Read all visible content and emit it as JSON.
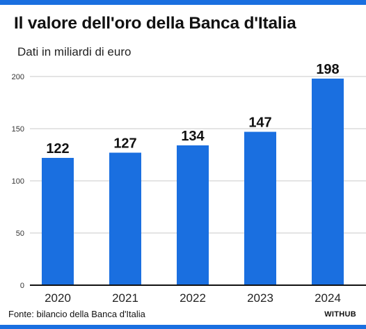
{
  "header": {
    "title": "Il valore dell'oro della Banca d'Italia",
    "subtitle": "Dati in miliardi di euro"
  },
  "footer": {
    "source": "Fonte: bilancio della Banca d'Italia",
    "brand": "WITHUB"
  },
  "colors": {
    "accent": "#1a6fe0",
    "bar": "#1a6fe0",
    "grid": "#c8c8c8",
    "axis": "#111111"
  },
  "chart_data": {
    "type": "bar",
    "title": "Il valore dell'oro della Banca d'Italia",
    "subtitle": "Dati in miliardi di euro",
    "categories": [
      "2020",
      "2021",
      "2022",
      "2023",
      "2024"
    ],
    "values": [
      122,
      127,
      134,
      147,
      198
    ],
    "data_labels": [
      "122",
      "127",
      "134",
      "147",
      "198"
    ],
    "ylim": [
      0,
      200
    ],
    "yticks": [
      0,
      50,
      100,
      150,
      200
    ],
    "grid": true,
    "legend": "none"
  }
}
